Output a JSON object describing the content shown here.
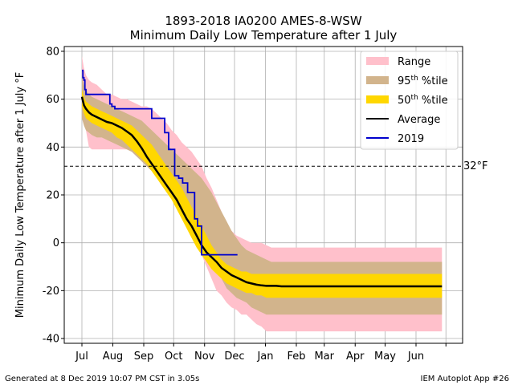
{
  "chart_data": {
    "type": "area",
    "title": "1893-2018 IA0200 AMES-8-WSW",
    "subtitle": "Minimum Daily Low Temperature after 1 July",
    "ylabel": "Minimum Daily Low Temperature after 1 July ",
    "ylabel_unit": "°F",
    "xlabel": "",
    "ylim": [
      -42,
      82
    ],
    "yticks": [
      -40,
      -20,
      0,
      20,
      40,
      60,
      80
    ],
    "month_ticks": [
      "Jul",
      "Aug",
      "Sep",
      "Oct",
      "Nov",
      "Dec",
      "Jan",
      "Feb",
      "Mar",
      "Apr",
      "May",
      "Jun"
    ],
    "grid": true,
    "legend_position": "top-right",
    "threshold": {
      "value": 32,
      "label": "32",
      "unit": "°F"
    },
    "colors": {
      "range": "#ffc0cb",
      "p95": "#d2b48c",
      "p50": "#ffd700",
      "average": "#000000",
      "year": "#0000cd",
      "threshold": "#000000"
    },
    "legend": [
      {
        "label": "Range",
        "kind": "patch",
        "color": "#ffc0cb"
      },
      {
        "label": "95",
        "sup": "th",
        "suffix": " %tile",
        "kind": "patch",
        "color": "#d2b48c"
      },
      {
        "label": "50",
        "sup": "th",
        "suffix": " %tile",
        "kind": "patch",
        "color": "#ffd700"
      },
      {
        "label": "Average",
        "kind": "line",
        "color": "#000000"
      },
      {
        "label": "2019",
        "kind": "line",
        "color": "#0000cd"
      }
    ],
    "x_days": [
      0,
      2,
      4,
      7,
      10,
      15,
      20,
      25,
      30,
      35,
      40,
      45,
      50,
      55,
      60,
      65,
      70,
      75,
      80,
      85,
      90,
      95,
      100,
      105,
      110,
      115,
      120,
      125,
      130,
      135,
      140,
      145,
      150,
      155,
      160,
      165,
      170,
      175,
      180,
      185,
      190,
      195,
      200,
      205,
      210,
      215,
      220,
      225,
      230,
      240,
      250,
      260,
      270,
      280,
      290,
      300,
      310,
      320,
      330,
      340,
      350,
      355,
      361
    ],
    "series": [
      {
        "name": "Range",
        "low": [
          56,
          52,
          47,
          40,
          39,
          39,
          39,
          39,
          39,
          39,
          39,
          39,
          39,
          38,
          37,
          36,
          35,
          32,
          30,
          28,
          25,
          20,
          15,
          12,
          4,
          0,
          -5,
          -10,
          -15,
          -20,
          -22,
          -25,
          -27,
          -28,
          -30,
          -30,
          -32,
          -34,
          -35,
          -37,
          -37,
          -37,
          -37,
          -37,
          -37,
          -37,
          -37,
          -37,
          -37,
          -37,
          -37,
          -37,
          -37,
          -37,
          -37,
          -37,
          -37,
          -37,
          -37,
          -37,
          -37,
          -37,
          -37
        ],
        "high": [
          78,
          73,
          70,
          68,
          67,
          66,
          64,
          62,
          62,
          61,
          60,
          60,
          59,
          58,
          57,
          57,
          56,
          54,
          52,
          50,
          47,
          45,
          42,
          40,
          38,
          35,
          32,
          27,
          23,
          18,
          13,
          8,
          5,
          3,
          2,
          1,
          0,
          0,
          0,
          -1,
          -2,
          -2,
          -2,
          -2,
          -2,
          -2,
          -2,
          -2,
          -2,
          -2,
          -2,
          -2,
          -2,
          -2,
          -2,
          -2,
          -2,
          -2,
          -2,
          -2,
          -2,
          -2,
          -2
        ]
      },
      {
        "name": "95%tile",
        "low": [
          52,
          49,
          47,
          46,
          45,
          44,
          44,
          43,
          42,
          41,
          40,
          39,
          38,
          36,
          34,
          32,
          30,
          27,
          25,
          23,
          20,
          18,
          15,
          12,
          10,
          8,
          5,
          0,
          -5,
          -10,
          -15,
          -19,
          -21,
          -23,
          -24,
          -25,
          -27,
          -28,
          -29,
          -30,
          -30,
          -30,
          -30,
          -30,
          -30,
          -30,
          -30,
          -30,
          -30,
          -30,
          -30,
          -30,
          -30,
          -30,
          -30,
          -30,
          -30,
          -30,
          -30,
          -30,
          -30,
          -30,
          -30
        ],
        "high": [
          70,
          66,
          64,
          62,
          61,
          60,
          59,
          58,
          57,
          56,
          55,
          54,
          53,
          52,
          51,
          49,
          47,
          45,
          43,
          41,
          39,
          37,
          35,
          33,
          31,
          29,
          27,
          24,
          21,
          17,
          13,
          9,
          5,
          2,
          -1,
          -3,
          -4,
          -5,
          -6,
          -7,
          -8,
          -8,
          -8,
          -8,
          -8,
          -8,
          -8,
          -8,
          -8,
          -8,
          -8,
          -8,
          -8,
          -8,
          -8,
          -8,
          -8,
          -8,
          -8,
          -8,
          -8,
          -8,
          -8
        ]
      },
      {
        "name": "50%tile",
        "low": [
          57,
          54,
          52,
          51,
          50,
          49,
          48,
          47,
          46,
          44,
          43,
          41,
          39,
          37,
          35,
          33,
          30,
          27,
          24,
          21,
          18,
          14,
          10,
          6,
          2,
          -2,
          -5,
          -8,
          -11,
          -13,
          -15,
          -17,
          -18,
          -19,
          -20,
          -21,
          -21,
          -22,
          -22,
          -23,
          -23,
          -23,
          -23,
          -23,
          -23,
          -23,
          -23,
          -23,
          -23,
          -23,
          -23,
          -23,
          -23,
          -23,
          -23,
          -23,
          -23,
          -23,
          -23,
          -23,
          -23,
          -23,
          -23
        ],
        "high": [
          64,
          61,
          59,
          58,
          57,
          56,
          55,
          54,
          53,
          52,
          51,
          50,
          49,
          47,
          45,
          43,
          41,
          38,
          35,
          32,
          29,
          26,
          23,
          19,
          15,
          11,
          7,
          3,
          -1,
          -4,
          -7,
          -9,
          -10,
          -11,
          -12,
          -12,
          -13,
          -13,
          -13,
          -13,
          -13,
          -13,
          -13,
          -13,
          -13,
          -13,
          -13,
          -13,
          -13,
          -13,
          -13,
          -13,
          -13,
          -13,
          -13,
          -13,
          -13,
          -13,
          -13,
          -13,
          -13,
          -13,
          -13
        ]
      },
      {
        "name": "Average",
        "values": [
          61,
          57.5,
          56,
          54.5,
          53.5,
          52.5,
          51.5,
          50.5,
          50,
          49,
          48,
          46.5,
          45,
          42.5,
          39.5,
          36,
          33,
          30,
          27,
          24,
          21,
          18,
          14,
          10,
          7,
          3,
          -1,
          -4,
          -6,
          -8,
          -10.5,
          -12,
          -13.5,
          -14.5,
          -15.5,
          -16.5,
          -17,
          -17.5,
          -17.8,
          -18,
          -18,
          -18,
          -18.2,
          -18.2,
          -18.2,
          -18.2,
          -18.2,
          -18.2,
          -18.2,
          -18.2,
          -18.2,
          -18.2,
          -18.2,
          -18.2,
          -18.2,
          -18.2,
          -18.2,
          -18.2,
          -18.2,
          -18.2,
          -18.2,
          -18.2,
          -18.2
        ]
      },
      {
        "name": "2019",
        "x": [
          0,
          1,
          1,
          2,
          2,
          3,
          3,
          4,
          4,
          28,
          28,
          30,
          30,
          33,
          33,
          70,
          70,
          83,
          83,
          87,
          87,
          93,
          93,
          97,
          97,
          101,
          101,
          106,
          106,
          113,
          113,
          116,
          116,
          120,
          120,
          156
        ],
        "values": [
          72,
          72,
          69,
          69,
          68,
          68,
          64,
          64,
          62,
          62,
          58,
          58,
          57,
          57,
          56,
          56,
          52,
          52,
          46,
          46,
          39,
          39,
          28,
          28,
          27,
          27,
          25,
          25,
          21,
          21,
          10,
          10,
          7,
          7,
          -5,
          -5
        ]
      }
    ]
  },
  "footer": {
    "left": "Generated at 8 Dec 2019 10:07 PM CST in 3.05s",
    "right": "IEM Autoplot App #26"
  }
}
